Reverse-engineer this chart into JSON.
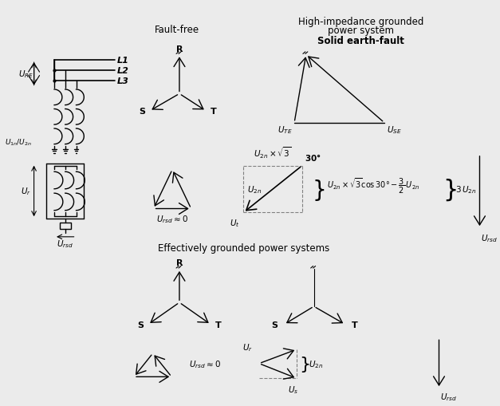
{
  "bg_color": "#ebebeb",
  "title_top_left": "Fault-free",
  "title_top_right1": "High-impedance grounded",
  "title_top_right2": "power system",
  "title_top_right3": "Solid earth-fault",
  "title_bottom": "Effectively grounded power systems",
  "fs_title": 8.5,
  "fs_label": 8,
  "fs_small": 7.5,
  "fs_eq": 7
}
